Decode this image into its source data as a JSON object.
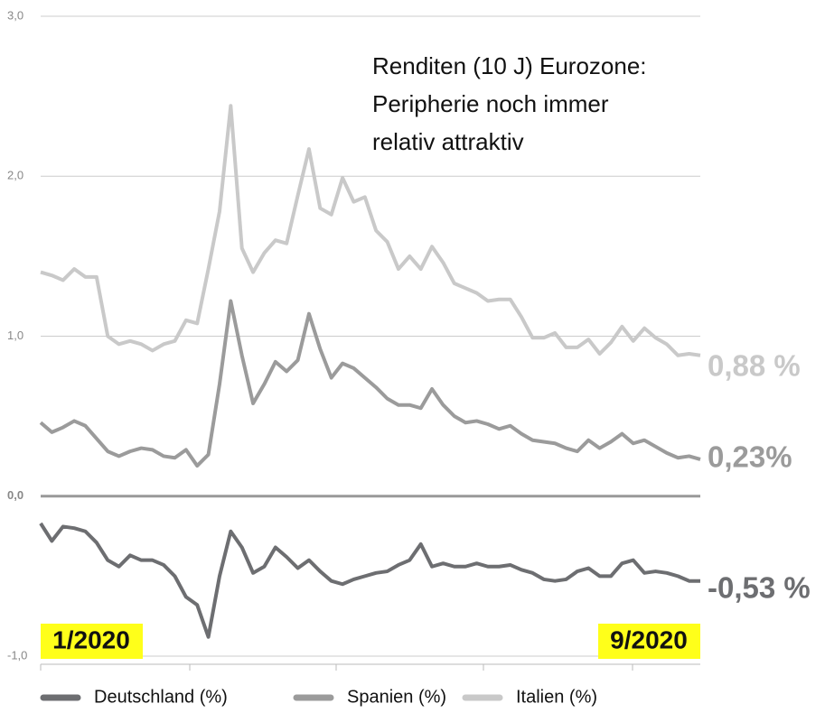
{
  "chart_data": {
    "type": "line",
    "title": [
      "Renditen (10 J) Eurozone:",
      "Peripherie noch immer",
      "relativ attraktiv"
    ],
    "series": [
      {
        "name": "Deutschland (%)",
        "color": "#6d6e71",
        "values": [
          -0.17,
          -0.28,
          -0.19,
          -0.2,
          -0.22,
          -0.29,
          -0.4,
          -0.44,
          -0.37,
          -0.4,
          -0.4,
          -0.43,
          -0.5,
          -0.63,
          -0.68,
          -0.88,
          -0.5,
          -0.22,
          -0.32,
          -0.48,
          -0.44,
          -0.32,
          -0.38,
          -0.45,
          -0.4,
          -0.47,
          -0.53,
          -0.55,
          -0.52,
          -0.5,
          -0.48,
          -0.47,
          -0.43,
          -0.4,
          -0.3,
          -0.44,
          -0.42,
          -0.44,
          -0.44,
          -0.42,
          -0.44,
          -0.44,
          -0.43,
          -0.46,
          -0.48,
          -0.52,
          -0.53,
          -0.52,
          -0.47,
          -0.45,
          -0.5,
          -0.5,
          -0.42,
          -0.4,
          -0.48,
          -0.47,
          -0.48,
          -0.5,
          -0.53,
          -0.53
        ]
      },
      {
        "name": "Spanien (%)",
        "color": "#9b9b9b",
        "values": [
          0.46,
          0.4,
          0.43,
          0.47,
          0.44,
          0.36,
          0.28,
          0.25,
          0.28,
          0.3,
          0.29,
          0.25,
          0.24,
          0.29,
          0.19,
          0.26,
          0.7,
          1.22,
          0.88,
          0.58,
          0.7,
          0.84,
          0.78,
          0.85,
          1.14,
          0.92,
          0.74,
          0.83,
          0.8,
          0.74,
          0.68,
          0.61,
          0.57,
          0.57,
          0.55,
          0.67,
          0.57,
          0.5,
          0.46,
          0.47,
          0.45,
          0.42,
          0.44,
          0.39,
          0.35,
          0.34,
          0.33,
          0.3,
          0.28,
          0.35,
          0.3,
          0.34,
          0.39,
          0.33,
          0.35,
          0.31,
          0.27,
          0.24,
          0.25,
          0.23
        ]
      },
      {
        "name": "Italien (%)",
        "color": "#c9c9c9",
        "values": [
          1.4,
          1.38,
          1.35,
          1.42,
          1.37,
          1.37,
          1.0,
          0.95,
          0.97,
          0.95,
          0.91,
          0.95,
          0.97,
          1.1,
          1.08,
          1.42,
          1.78,
          2.44,
          1.55,
          1.4,
          1.52,
          1.6,
          1.58,
          1.88,
          2.17,
          1.8,
          1.76,
          1.99,
          1.84,
          1.87,
          1.66,
          1.59,
          1.42,
          1.5,
          1.42,
          1.56,
          1.46,
          1.33,
          1.3,
          1.27,
          1.22,
          1.23,
          1.23,
          1.12,
          0.99,
          0.99,
          1.02,
          0.93,
          0.93,
          0.98,
          0.89,
          0.96,
          1.06,
          0.97,
          1.05,
          0.99,
          0.95,
          0.88,
          0.89,
          0.88
        ]
      }
    ],
    "end_labels": [
      "-0,53 %",
      "0,23%",
      "0,88 %"
    ],
    "date_labels": [
      "1/2020",
      "9/2020"
    ],
    "ylim": [
      -1,
      3
    ],
    "yticks": [
      {
        "value": -1,
        "label": "-1,0"
      },
      {
        "value": 0,
        "label": "0,0"
      },
      {
        "value": 1,
        "label": "1,0"
      },
      {
        "value": 2,
        "label": "2,0"
      },
      {
        "value": 3,
        "label": "3,0"
      }
    ],
    "grid": true
  }
}
